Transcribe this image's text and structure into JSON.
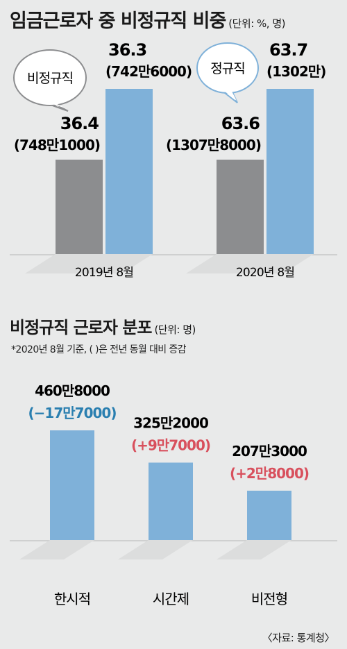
{
  "chart_data": [
    {
      "type": "bar",
      "title": "임금근로자 중 비정규직 비중",
      "unit": "(단위: %, 명)",
      "categories": [
        "2019년 8월",
        "2020년 8월"
      ],
      "series": [
        {
          "name": "비정규직",
          "values": [
            36.4,
            63.6
          ],
          "counts": [
            "(748만1000)",
            "(1307만8000)"
          ],
          "color": "#8c8d8f"
        },
        {
          "name": "정규직",
          "values": [
            36.3,
            63.7
          ],
          "counts": [
            "(742만6000)",
            "(1302만)"
          ],
          "color": "#7fb1d9"
        }
      ],
      "bubbles": [
        "비정규직",
        "정규직"
      ]
    },
    {
      "type": "bar",
      "title": "비정규직 근로자 분포",
      "unit": "(단위: 명)",
      "note": "*2020년 8월 기준, (  )은 전년 동월 대비 증감",
      "categories": [
        "한시적",
        "시간제",
        "비전형"
      ],
      "values_label": [
        "460만8000",
        "325만2000",
        "207만3000"
      ],
      "values": [
        4608000,
        3252000,
        2073000
      ],
      "changes": [
        "(−17만7000)",
        "(+9만7000)",
        "(+2만8000)"
      ],
      "change_colors": [
        "#2a7fb0",
        "#d8505d",
        "#d8505d"
      ],
      "color": "#7fb1d9"
    }
  ],
  "source": "〈자료: 통계청〉"
}
